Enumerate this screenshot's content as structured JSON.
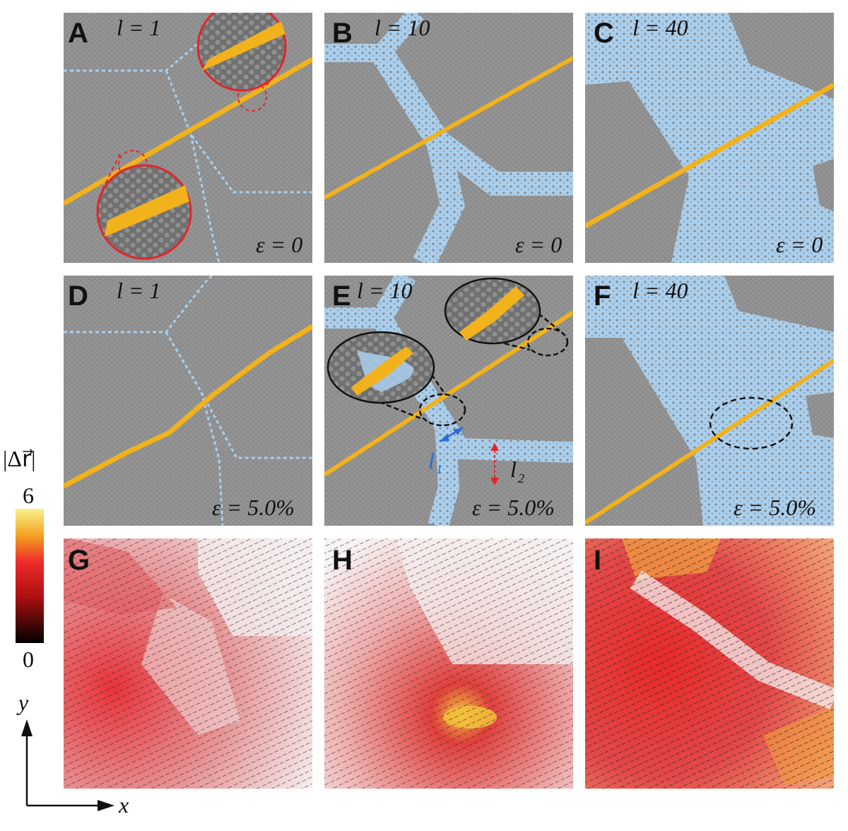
{
  "panels": [
    {
      "id": "A",
      "l_text": "l = 1",
      "eps_text": "ε = 0"
    },
    {
      "id": "B",
      "l_text": "l = 10",
      "eps_text": "ε = 0"
    },
    {
      "id": "C",
      "l_text": "l = 40",
      "eps_text": "ε = 0"
    },
    {
      "id": "D",
      "l_text": "l = 1",
      "eps_text": "ε = 5.0%"
    },
    {
      "id": "E",
      "l_text": "l = 10",
      "eps_text": "ε = 5.0%"
    },
    {
      "id": "F",
      "l_text": "l = 40",
      "eps_text": "ε = 5.0%"
    },
    {
      "id": "G"
    },
    {
      "id": "H"
    },
    {
      "id": "I"
    }
  ],
  "annotations": {
    "l1": "l",
    "l1_sub": "1",
    "l2": "l",
    "l2_sub": "2"
  },
  "colorbar": {
    "title": "|Δr⃗|",
    "max": "6",
    "min": "0"
  },
  "axes": {
    "x": "x",
    "y": "y"
  },
  "colors": {
    "grain": "#8a8a8a",
    "boundary": "#a9cfee",
    "crack": "#f2b21b",
    "zoom_circle_top": "#e0262a",
    "zoom_circle_mid": "#111111"
  }
}
